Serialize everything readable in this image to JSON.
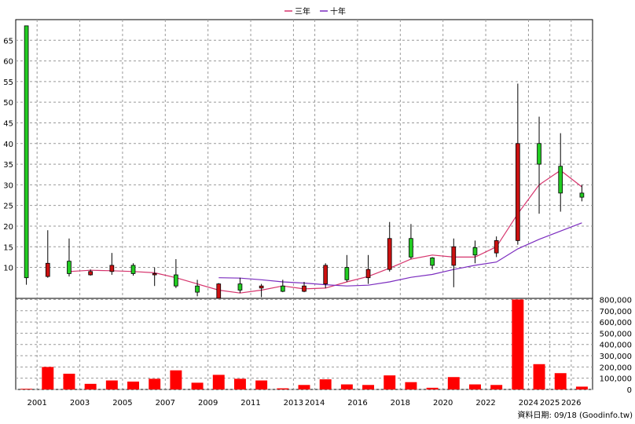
{
  "chart_data": {
    "type": "candlestick",
    "legend": [
      {
        "name": "三年",
        "color": "#d6336c"
      },
      {
        "name": "十年",
        "color": "#7b2cbf"
      }
    ],
    "legend_position": "top-center",
    "grid": true,
    "price_axis": {
      "ticks": [
        10,
        15,
        20,
        25,
        30,
        35,
        40,
        45,
        50,
        55,
        60,
        65
      ],
      "ylim": [
        2.5,
        70
      ]
    },
    "volume_axis": {
      "ticks": [
        "0",
        "100,000",
        "200,000",
        "300,000",
        "400,000",
        "500,000",
        "600,000",
        "700,000",
        "800,000"
      ],
      "ylim": [
        0,
        810000
      ]
    },
    "x_tick_labels": [
      {
        "label": "2001",
        "i": 1
      },
      {
        "label": "2003",
        "i": 3
      },
      {
        "label": "2005",
        "i": 5
      },
      {
        "label": "2007",
        "i": 7
      },
      {
        "label": "2009",
        "i": 9
      },
      {
        "label": "2011",
        "i": 11
      },
      {
        "label": "2013",
        "i": 13
      },
      {
        "label": "2014",
        "i": 14
      },
      {
        "label": "2016",
        "i": 16
      },
      {
        "label": "2018",
        "i": 18
      },
      {
        "label": "2020",
        "i": 20
      },
      {
        "label": "2022",
        "i": 22
      },
      {
        "label": "2024",
        "i": 24
      },
      {
        "label": "2025",
        "i": 25
      },
      {
        "label": "2026",
        "i": 26
      }
    ],
    "candles": [
      {
        "o": 7.5,
        "h": 68.5,
        "l": 5.8,
        "c": 68.5,
        "v": 6000
      },
      {
        "o": 11,
        "h": 19,
        "l": 7.5,
        "c": 7.8,
        "v": 200000
      },
      {
        "o": 8.5,
        "h": 17,
        "l": 7.8,
        "c": 11.5,
        "v": 140000
      },
      {
        "o": 9,
        "h": 9.5,
        "l": 8,
        "c": 8.2,
        "v": 50000
      },
      {
        "o": 10.5,
        "h": 13.5,
        "l": 8.2,
        "c": 9,
        "v": 80000
      },
      {
        "o": 8.5,
        "h": 11,
        "l": 8,
        "c": 10.5,
        "v": 70000
      },
      {
        "o": 8.5,
        "h": 10,
        "l": 5.5,
        "c": 8.2,
        "v": 95000
      },
      {
        "o": 5.5,
        "h": 12,
        "l": 5,
        "c": 8.2,
        "v": 170000
      },
      {
        "o": 4,
        "h": 7,
        "l": 3,
        "c": 5.5,
        "v": 60000
      },
      {
        "o": 6,
        "h": 6.2,
        "l": 2.8,
        "c": 2.5,
        "v": 130000
      },
      {
        "o": 4.5,
        "h": 7.5,
        "l": 3.8,
        "c": 6,
        "v": 95000
      },
      {
        "o": 5.5,
        "h": 6,
        "l": 2.8,
        "c": 5,
        "v": 80000
      },
      {
        "o": 4.2,
        "h": 7,
        "l": 4,
        "c": 5.5,
        "v": 10000
      },
      {
        "o": 5.5,
        "h": 6.5,
        "l": 4,
        "c": 4.2,
        "v": 40000
      },
      {
        "o": 10.5,
        "h": 11,
        "l": 5,
        "c": 6,
        "v": 90000
      },
      {
        "o": 7,
        "h": 13,
        "l": 6.5,
        "c": 10,
        "v": 45000
      },
      {
        "o": 9.5,
        "h": 13,
        "l": 6,
        "c": 7.5,
        "v": 40000
      },
      {
        "o": 17,
        "h": 21,
        "l": 9,
        "c": 9.5,
        "v": 125000
      },
      {
        "o": 12.5,
        "h": 20.5,
        "l": 12,
        "c": 17,
        "v": 65000
      },
      {
        "o": 10.5,
        "h": 12.5,
        "l": 9.5,
        "c": 12.3,
        "v": 15000
      },
      {
        "o": 15,
        "h": 17,
        "l": 5.2,
        "c": 10.5,
        "v": 110000
      },
      {
        "o": 13,
        "h": 16.5,
        "l": 11,
        "c": 14.8,
        "v": 45000
      },
      {
        "o": 16.5,
        "h": 17.5,
        "l": 12.5,
        "c": 13.5,
        "v": 40000
      },
      {
        "o": 40,
        "h": 54.5,
        "l": 15.5,
        "c": 16.5,
        "v": 800000
      },
      {
        "o": 35,
        "h": 46.5,
        "l": 23,
        "c": 40,
        "v": 225000
      },
      {
        "o": 28,
        "h": 42.5,
        "l": 23.5,
        "c": 34.5,
        "v": 145000
      },
      {
        "o": 27,
        "h": 30,
        "l": 26,
        "c": 28,
        "v": 25000
      }
    ],
    "ma3": [
      null,
      null,
      9,
      9.3,
      9.2,
      9,
      8.7,
      7.5,
      6,
      4.5,
      3.8,
      4.5,
      5.5,
      4.8,
      5,
      6.5,
      7.8,
      9.8,
      12,
      13,
      12.5,
      12.5,
      15,
      23,
      30,
      33.5,
      29.5
    ],
    "ma10": [
      null,
      null,
      null,
      null,
      null,
      null,
      null,
      null,
      null,
      7.5,
      7.4,
      7,
      6.5,
      6.2,
      5.8,
      5.5,
      5.7,
      6.5,
      7.6,
      8.3,
      9.5,
      10.5,
      11.3,
      14.5,
      16.8,
      18.8,
      20.8
    ],
    "note": "資料日期: 09/18 (Goodinfo.tw)"
  }
}
